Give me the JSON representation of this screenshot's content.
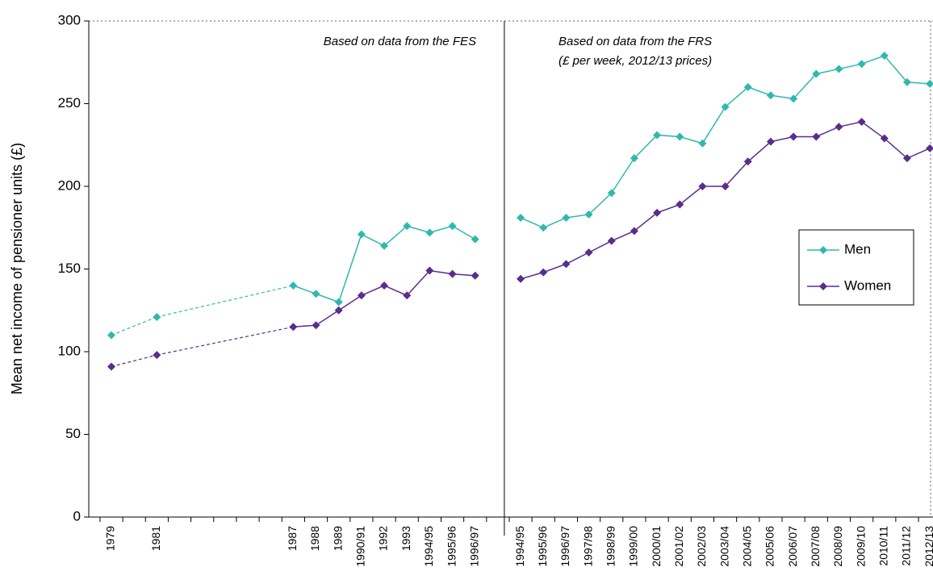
{
  "chart_data": {
    "type": "line",
    "y_label": "Mean net income of pensioner units (£)",
    "annotations": [
      "Based on data from the FES",
      "Based on data from the FRS",
      "(£ per week, 2012/13 prices)"
    ],
    "categories": [
      "1979",
      null,
      "1981",
      null,
      null,
      null,
      null,
      null,
      "1987",
      "1988",
      "1989",
      "1990/91",
      "1992",
      "1993",
      "1994/95",
      "1995/96",
      "1996/97",
      null,
      "1994/95",
      "1995/96",
      "1996/97",
      "1997/98",
      "1998/99",
      "1999/00",
      "2000/01",
      "2001/02",
      "2002/03",
      "2003/04",
      "2004/05",
      "2005/06",
      "2006/07",
      "2007/08",
      "2008/09",
      "2009/10",
      "2010/11",
      "2011/12",
      "2012/13"
    ],
    "series": [
      {
        "name": "Men",
        "color": "#2fb9ad",
        "values": [
          110,
          null,
          121,
          null,
          null,
          null,
          null,
          null,
          140,
          135,
          130,
          171,
          164,
          176,
          172,
          176,
          168,
          null,
          181,
          175,
          181,
          183,
          196,
          217,
          231,
          230,
          226,
          248,
          260,
          255,
          253,
          268,
          271,
          274,
          279,
          263,
          262
        ]
      },
      {
        "name": "Women",
        "color": "#5a2d8c",
        "values": [
          91,
          null,
          98,
          null,
          null,
          null,
          null,
          null,
          115,
          116,
          125,
          134,
          140,
          134,
          149,
          147,
          146,
          null,
          144,
          148,
          153,
          160,
          167,
          173,
          184,
          189,
          200,
          200,
          215,
          227,
          230,
          230,
          236,
          239,
          229,
          217,
          223
        ]
      }
    ],
    "ylim": [
      0,
      300
    ],
    "yticks": [
      0,
      50,
      100,
      150,
      200,
      250,
      300
    ],
    "legend": "right"
  }
}
